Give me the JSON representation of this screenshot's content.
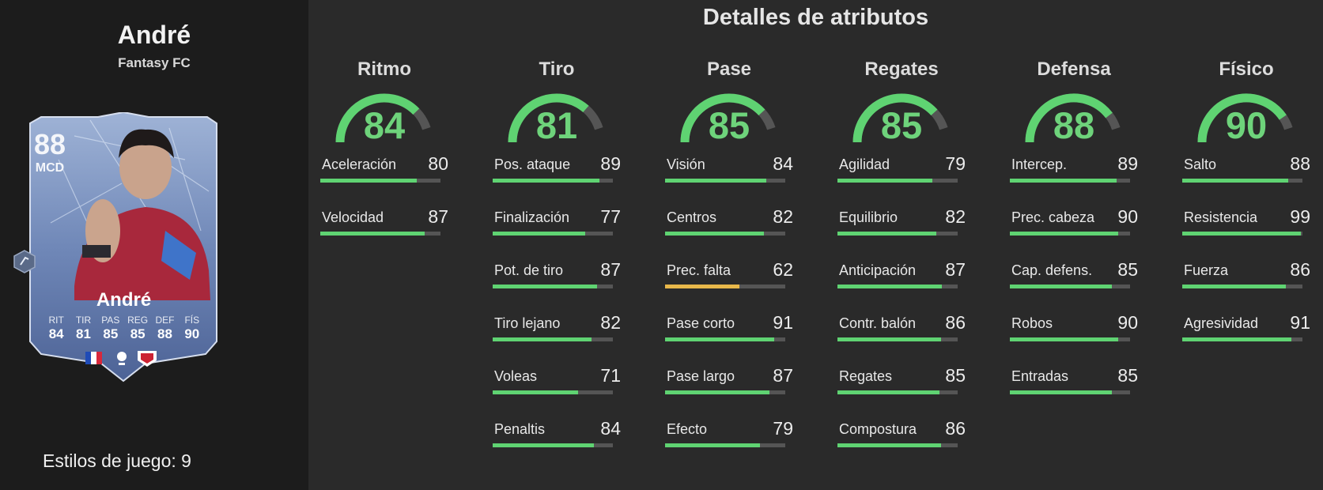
{
  "player": {
    "name": "André",
    "card_type": "Fantasy FC",
    "card_name": "André",
    "overall": "88",
    "position": "MCD",
    "playstyles_label": "Estilos de juego: 9",
    "card_stats": [
      {
        "label": "RIT",
        "value": "84"
      },
      {
        "label": "TIR",
        "value": "81"
      },
      {
        "label": "PAS",
        "value": "85"
      },
      {
        "label": "REG",
        "value": "85"
      },
      {
        "label": "DEF",
        "value": "88"
      },
      {
        "label": "FÍS",
        "value": "90"
      }
    ]
  },
  "title": "Detalles de atributos",
  "colors": {
    "high": "#5fd372",
    "mid": "#e8b84a",
    "track": "#555555",
    "gauge_value": "#6ed37b"
  },
  "categories": [
    {
      "name": "Ritmo",
      "value": "84",
      "stats": [
        {
          "label": "Aceleración",
          "value": "80"
        },
        {
          "label": "Velocidad",
          "value": "87"
        }
      ]
    },
    {
      "name": "Tiro",
      "value": "81",
      "stats": [
        {
          "label": "Pos. ataque",
          "value": "89"
        },
        {
          "label": "Finalización",
          "value": "77"
        },
        {
          "label": "Pot. de tiro",
          "value": "87"
        },
        {
          "label": "Tiro lejano",
          "value": "82"
        },
        {
          "label": "Voleas",
          "value": "71"
        },
        {
          "label": "Penaltis",
          "value": "84"
        }
      ]
    },
    {
      "name": "Pase",
      "value": "85",
      "stats": [
        {
          "label": "Visión",
          "value": "84"
        },
        {
          "label": "Centros",
          "value": "82"
        },
        {
          "label": "Prec. falta",
          "value": "62"
        },
        {
          "label": "Pase corto",
          "value": "91"
        },
        {
          "label": "Pase largo",
          "value": "87"
        },
        {
          "label": "Efecto",
          "value": "79"
        }
      ]
    },
    {
      "name": "Regates",
      "value": "85",
      "stats": [
        {
          "label": "Agilidad",
          "value": "79"
        },
        {
          "label": "Equilibrio",
          "value": "82"
        },
        {
          "label": "Anticipación",
          "value": "87"
        },
        {
          "label": "Contr. balón",
          "value": "86"
        },
        {
          "label": "Regates",
          "value": "85"
        },
        {
          "label": "Compostura",
          "value": "86"
        }
      ]
    },
    {
      "name": "Defensa",
      "value": "88",
      "stats": [
        {
          "label": "Intercep.",
          "value": "89"
        },
        {
          "label": "Prec. cabeza",
          "value": "90"
        },
        {
          "label": "Cap. defens.",
          "value": "85"
        },
        {
          "label": "Robos",
          "value": "90"
        },
        {
          "label": "Entradas",
          "value": "85"
        }
      ]
    },
    {
      "name": "Físico",
      "value": "90",
      "stats": [
        {
          "label": "Salto",
          "value": "88"
        },
        {
          "label": "Resistencia",
          "value": "99"
        },
        {
          "label": "Fuerza",
          "value": "86"
        },
        {
          "label": "Agresividad",
          "value": "91"
        }
      ]
    }
  ]
}
